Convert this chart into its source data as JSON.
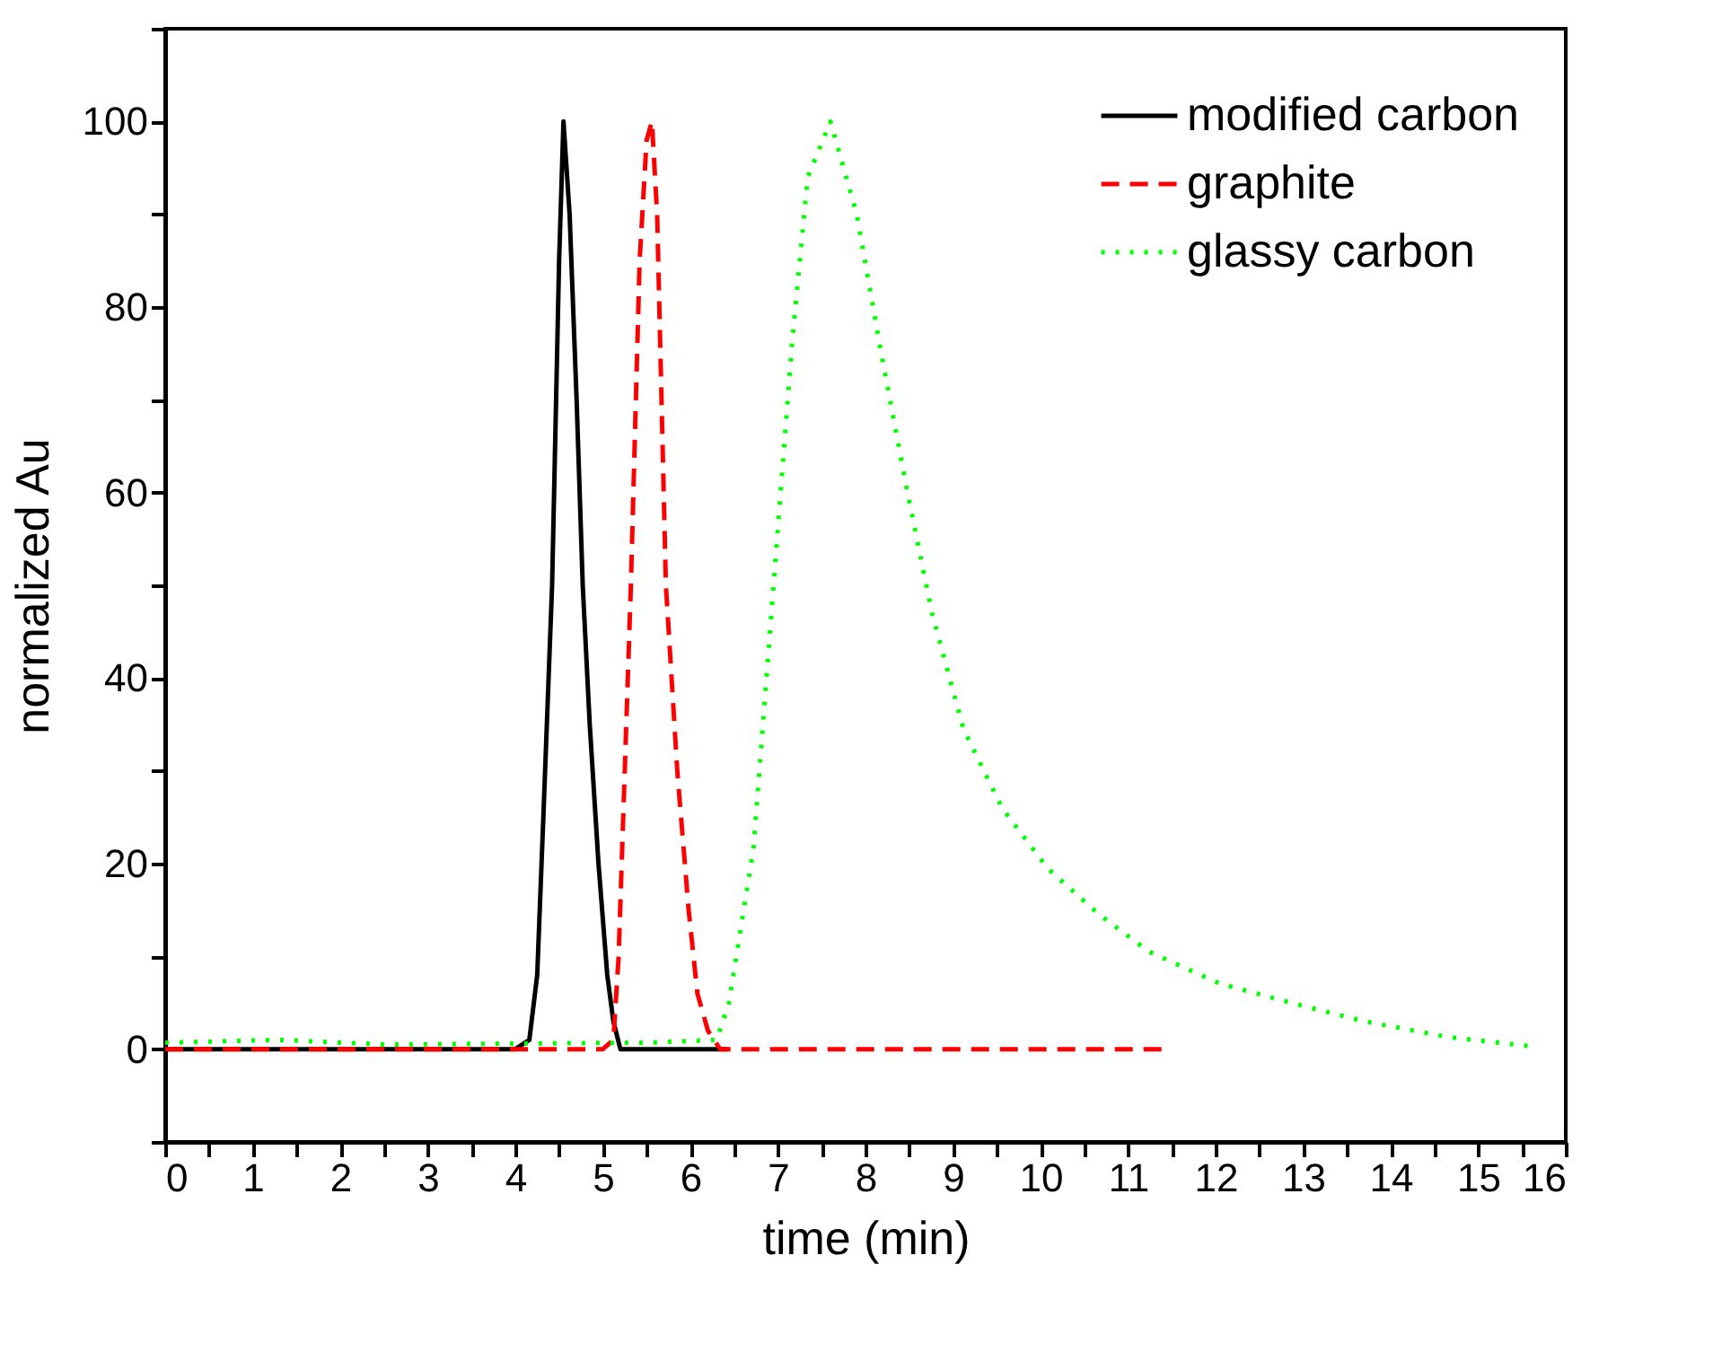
{
  "chart_data": {
    "type": "line",
    "xlabel": "time (min)",
    "ylabel": "normalized Au",
    "xlim": [
      0,
      16
    ],
    "ylim": [
      -10,
      110
    ],
    "xticks": [
      0,
      {
        "value": 0.5,
        "label": null
      },
      1,
      {
        "value": 1.5,
        "label": null
      },
      2,
      {
        "value": 2.5,
        "label": null
      },
      3,
      {
        "value": 3.5,
        "label": null
      },
      4,
      {
        "value": 4.5,
        "label": null
      },
      5,
      {
        "value": 5.5,
        "label": null
      },
      6,
      {
        "value": 6.5,
        "label": null
      },
      7,
      {
        "value": 7.5,
        "label": null
      },
      8,
      {
        "value": 8.5,
        "label": null
      },
      9,
      {
        "value": 9.5,
        "label": null
      },
      10,
      {
        "value": 10.5,
        "label": null
      },
      11,
      {
        "value": 11.5,
        "label": null
      },
      12,
      {
        "value": 12.5,
        "label": null
      },
      13,
      {
        "value": 13.5,
        "label": null
      },
      14,
      {
        "value": 14.5,
        "label": null
      },
      15,
      {
        "value": 15.5,
        "label": null
      },
      16
    ],
    "yticks": [
      {
        "value": -10,
        "label": null
      },
      0,
      {
        "value": 10,
        "label": null
      },
      20,
      {
        "value": 30,
        "label": null
      },
      40,
      {
        "value": 50,
        "label": null
      },
      60,
      {
        "value": 70,
        "label": null
      },
      80,
      {
        "value": 90,
        "label": null
      },
      100,
      {
        "value": 110,
        "label": null
      }
    ],
    "grid": false,
    "legend": "top right",
    "marker": "none",
    "series": [
      {
        "name": "modified carbon",
        "color": "#000000",
        "line_style": "solid",
        "x": [
          0,
          4.0,
          4.16,
          4.25,
          4.32,
          4.42,
          4.5,
          4.55,
          4.62,
          4.7,
          4.77,
          4.85,
          4.95,
          5.05,
          5.12,
          5.2,
          6.42
        ],
        "values": [
          0,
          0,
          1,
          8,
          25,
          50,
          85,
          100,
          90,
          70,
          50,
          35,
          20,
          8,
          3,
          0,
          0
        ]
      },
      {
        "name": "graphite",
        "color": "#ff0000",
        "line_style": "dashed",
        "x": [
          0,
          5.0,
          5.12,
          5.18,
          5.25,
          5.32,
          5.42,
          5.5,
          5.56,
          5.62,
          5.72,
          5.85,
          5.98,
          6.08,
          6.2,
          6.34,
          11.42
        ],
        "values": [
          0,
          0,
          1,
          10,
          30,
          50,
          85,
          98,
          100,
          90,
          50,
          30,
          15,
          6,
          2,
          0,
          0
        ]
      },
      {
        "name": "glassy carbon",
        "color": "#00ff00",
        "line_style": "dotted",
        "x": [
          0,
          1.3,
          2.5,
          4.0,
          5.5,
          6.3,
          6.44,
          6.72,
          6.94,
          7.16,
          7.34,
          7.6,
          7.9,
          8.18,
          8.48,
          8.76,
          9.12,
          9.56,
          10.08,
          10.66,
          11.24,
          12.04,
          12.9,
          13.7,
          14.66,
          15.52,
          15.6
        ],
        "values": [
          0.7,
          1,
          0.5,
          0.6,
          0.7,
          1,
          5,
          21.6,
          48.8,
          76,
          94,
          100,
          90,
          75,
          60,
          47,
          34.5,
          26,
          19.5,
          14.6,
          10.5,
          7.1,
          4.9,
          3,
          1.3,
          0.4,
          0.3
        ]
      }
    ]
  }
}
